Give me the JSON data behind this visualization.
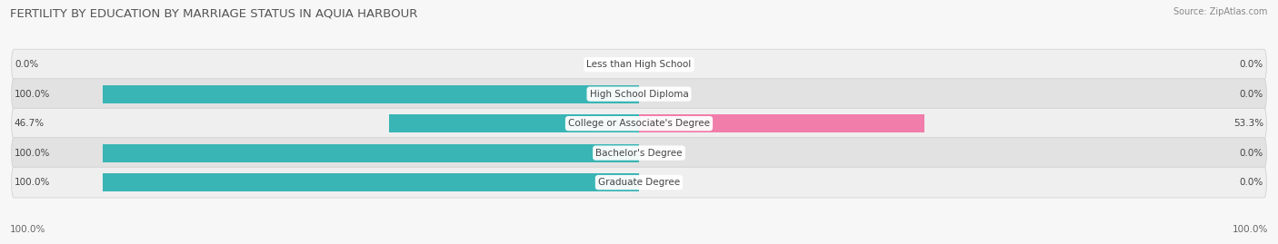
{
  "title": "FERTILITY BY EDUCATION BY MARRIAGE STATUS IN AQUIA HARBOUR",
  "source": "Source: ZipAtlas.com",
  "categories": [
    "Less than High School",
    "High School Diploma",
    "College or Associate's Degree",
    "Bachelor's Degree",
    "Graduate Degree"
  ],
  "married_pct": [
    0.0,
    100.0,
    46.7,
    100.0,
    100.0
  ],
  "unmarried_pct": [
    0.0,
    0.0,
    53.3,
    0.0,
    0.0
  ],
  "married_color": "#3ab5b5",
  "unmarried_color": "#f07daa",
  "row_bg_odd": "#efefef",
  "row_bg_even": "#e2e2e2",
  "title_fontsize": 9.5,
  "label_fontsize": 7.5,
  "value_fontsize": 7.5,
  "source_fontsize": 7,
  "legend_fontsize": 8,
  "fig_bg_color": "#f7f7f7",
  "bar_height": 0.62,
  "max_val": 100.0,
  "axis_bottom_left": "100.0%",
  "axis_bottom_right": "100.0%"
}
